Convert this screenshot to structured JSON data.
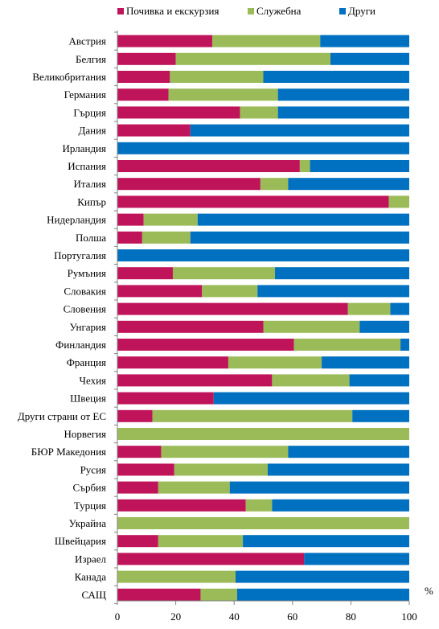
{
  "chart_data": {
    "type": "bar",
    "orientation": "horizontal",
    "stacked": true,
    "unit_label": "%",
    "legend_position": "top",
    "grid": false,
    "xlim": [
      0,
      100
    ],
    "xticks": [
      "0",
      "20",
      "40",
      "60",
      "80",
      "100"
    ],
    "categories": [
      "Австрия",
      "Белгия",
      "Великобритания",
      "Германия",
      "Гърция",
      "Дания",
      "Ирландия",
      "Испания",
      "Италия",
      "Кипър",
      "Нидерландия",
      "Полша",
      "Португалия",
      "Румъния",
      "Словакия",
      "Словения",
      "Унгария",
      "Финландия",
      "Франция",
      "Чехия",
      "Швеция",
      "Други страни от ЕС",
      "Норвегия",
      "БЮР Македония",
      "Русия",
      "Сърбия",
      "Турция",
      "Украйна",
      "Швейцария",
      "Израел",
      "Канада",
      "САЩ"
    ],
    "series": [
      {
        "name": "Почивка и екскурзия",
        "color": "#c0145a",
        "values": [
          32.5,
          20,
          18,
          17.5,
          42,
          25,
          0,
          62.5,
          49,
          93,
          9,
          8.5,
          0,
          19,
          29,
          79,
          50,
          60.5,
          38,
          53,
          33,
          12,
          0,
          15,
          19.5,
          14,
          44,
          0,
          14,
          64,
          0,
          28.5
        ]
      },
      {
        "name": "Служебна",
        "color": "#9bbb59",
        "values": [
          37,
          53,
          32,
          37.5,
          13,
          0,
          0,
          3.5,
          9.5,
          7,
          18.5,
          16.5,
          0,
          35,
          19,
          14.5,
          33,
          36.5,
          32,
          26.5,
          0,
          68.5,
          100,
          43.5,
          32,
          24.5,
          9,
          100,
          29,
          0,
          40.5,
          12.5
        ]
      },
      {
        "name": "Други",
        "color": "#0070c0",
        "values": [
          30.5,
          27,
          50,
          45,
          45,
          75,
          100,
          34,
          41.5,
          0,
          72.5,
          75,
          100,
          46,
          52,
          6.5,
          17,
          3,
          30,
          20.5,
          67,
          19.5,
          0,
          41.5,
          48.5,
          61.5,
          47,
          0,
          57,
          36,
          59.5,
          59
        ]
      }
    ]
  }
}
